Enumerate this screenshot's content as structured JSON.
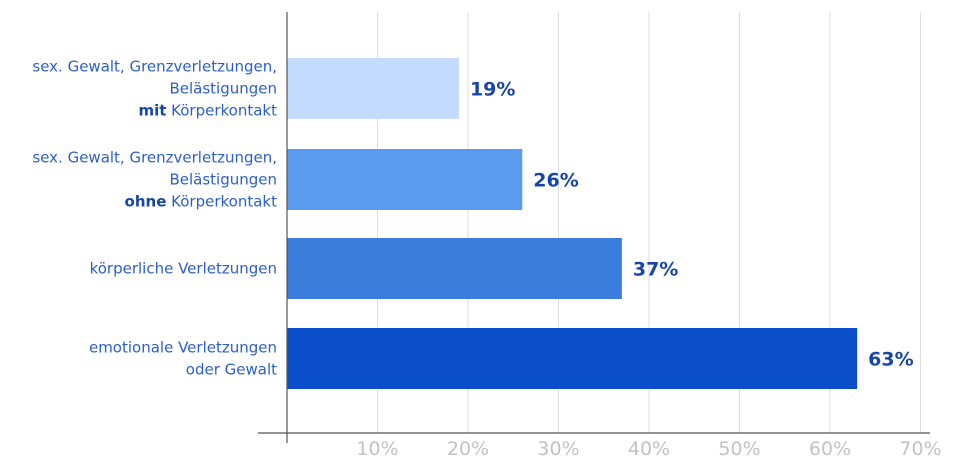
{
  "chart_data": {
    "type": "bar",
    "orientation": "horizontal",
    "categories": [
      [
        {
          "text": "sex. Gewalt, Grenzverletzungen,",
          "bold": false
        },
        {
          "text": "Belästigungen",
          "bold": false
        },
        [
          {
            "text": "mit",
            "bold": true
          },
          {
            "text": " Körperkontakt",
            "bold": false
          }
        ]
      ],
      [
        {
          "text": "sex. Gewalt, Grenzverletzungen,",
          "bold": false
        },
        {
          "text": "Belästigungen",
          "bold": false
        },
        [
          {
            "text": "ohne",
            "bold": true
          },
          {
            "text": " Körperkontakt",
            "bold": false
          }
        ]
      ],
      [
        {
          "text": "körperliche Verletzungen",
          "bold": false
        }
      ],
      [
        {
          "text": "emotionale Verletzungen",
          "bold": false
        },
        {
          "text": "oder Gewalt",
          "bold": false
        }
      ]
    ],
    "values": [
      19,
      26,
      37,
      63
    ],
    "value_labels": [
      "19%",
      "26%",
      "37%",
      "63%"
    ],
    "bar_colors": [
      "#c2dbff",
      "#5b9bef",
      "#3b7ddc",
      "#0a4fc9"
    ],
    "xlim": [
      0,
      70
    ],
    "ticks": [
      10,
      20,
      30,
      40,
      50,
      60,
      70
    ],
    "tick_labels": [
      "10%",
      "20%",
      "30%",
      "40%",
      "50%",
      "60%",
      "70%"
    ],
    "grid": true,
    "title": "",
    "xlabel": "",
    "ylabel": ""
  }
}
